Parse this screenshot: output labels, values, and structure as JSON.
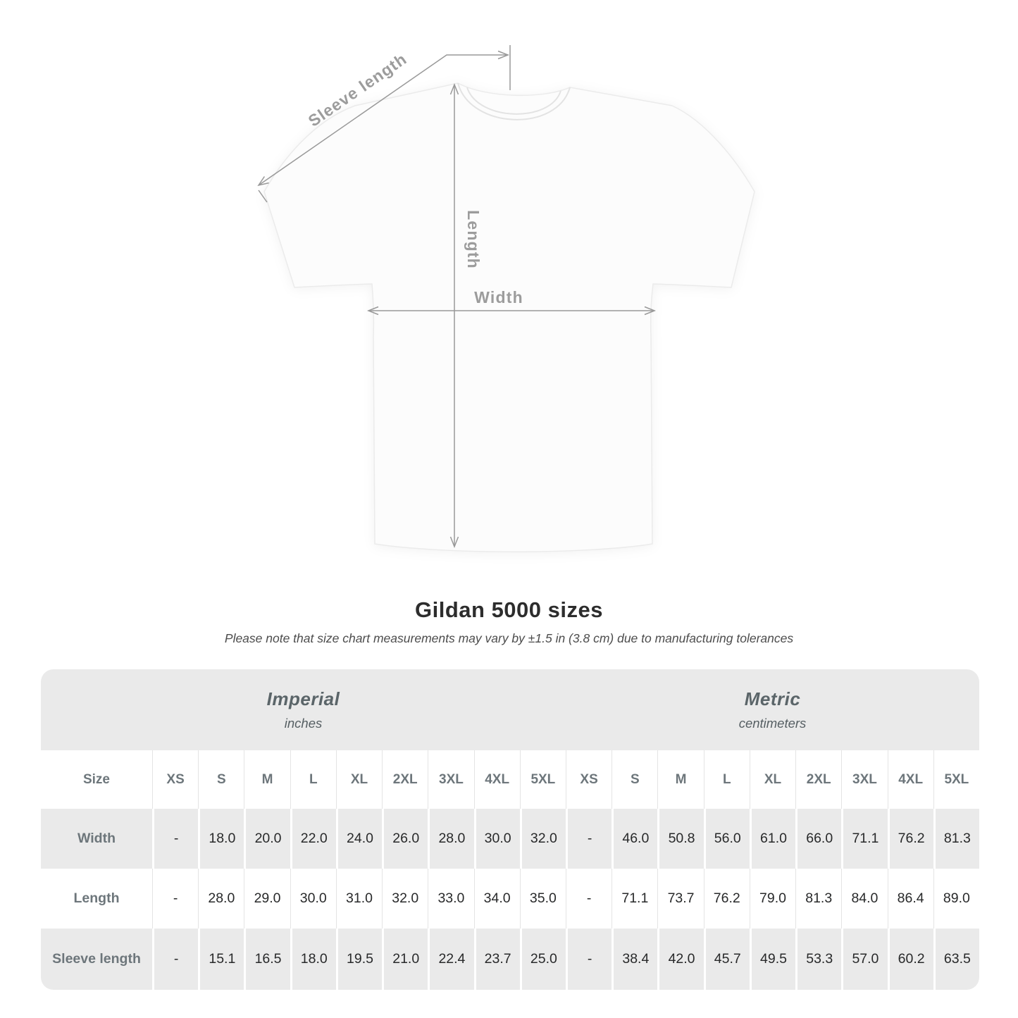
{
  "diagram": {
    "sleeve_length_label": "Sleeve length",
    "length_label": "Length",
    "width_label": "Width",
    "annotation_color": "#999999"
  },
  "chart_data": {
    "type": "table",
    "title": "Gildan 5000 sizes",
    "subtitle": "Please note that size chart measurements may vary by ±1.5 in (3.8 cm) due to manufacturing tolerances",
    "unit_groups": [
      {
        "label": "Imperial",
        "sublabel": "inches"
      },
      {
        "label": "Metric",
        "sublabel": "centimeters"
      }
    ],
    "corner_header": "Size",
    "sizes": [
      "XS",
      "S",
      "M",
      "L",
      "XL",
      "2XL",
      "3XL",
      "4XL",
      "5XL"
    ],
    "rows": [
      {
        "label": "Width",
        "imperial": [
          "-",
          "18.0",
          "20.0",
          "22.0",
          "24.0",
          "26.0",
          "28.0",
          "30.0",
          "32.0"
        ],
        "metric": [
          "-",
          "46.0",
          "50.8",
          "56.0",
          "61.0",
          "66.0",
          "71.1",
          "76.2",
          "81.3"
        ]
      },
      {
        "label": "Length",
        "imperial": [
          "-",
          "28.0",
          "29.0",
          "30.0",
          "31.0",
          "32.0",
          "33.0",
          "34.0",
          "35.0"
        ],
        "metric": [
          "-",
          "71.1",
          "73.7",
          "76.2",
          "79.0",
          "81.3",
          "84.0",
          "86.4",
          "89.0"
        ]
      },
      {
        "label": "Sleeve length",
        "imperial": [
          "-",
          "15.1",
          "16.5",
          "18.0",
          "19.5",
          "21.0",
          "22.4",
          "23.7",
          "25.0"
        ],
        "metric": [
          "-",
          "38.4",
          "42.0",
          "45.7",
          "49.5",
          "53.3",
          "57.0",
          "60.2",
          "63.5"
        ]
      }
    ],
    "colors": {
      "row_band": "#eaeaea",
      "page_background": "#ffffff"
    }
  }
}
